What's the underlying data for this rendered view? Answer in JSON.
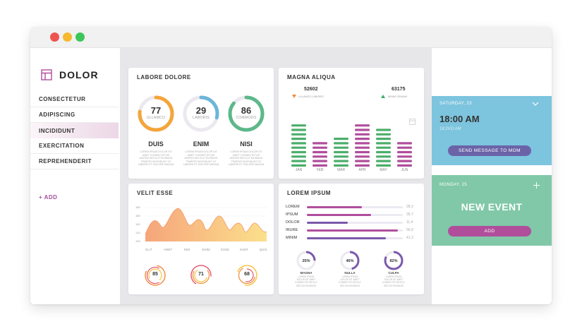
{
  "window": {
    "dots": [
      "#ef5350",
      "#f5b82e",
      "#3cc65a"
    ]
  },
  "sidebar": {
    "brand": "DOLOR",
    "items": [
      {
        "label": "CONSECTETUR",
        "active": false
      },
      {
        "label": "ADIPISCING",
        "active": false
      },
      {
        "label": "INCIDIDUNT",
        "active": true
      },
      {
        "label": "EXERCITATION",
        "active": false
      },
      {
        "label": "REPREHENDERIT",
        "active": false
      }
    ],
    "add_label": "+ ADD"
  },
  "card_labore": {
    "title": "LABORE DOLORE",
    "rings": [
      {
        "value": "77",
        "sub": "ULLAMCO",
        "label": "DUIS",
        "color": "#f4a53b",
        "fraction": 0.77,
        "desc": "LOREM IPSUM DOLOR SIT AMET CONSECTETUR ADIPISCING ELIT EIUSMOD TEMPOR INCIDIDUNT UT LABORE ET DOLORE MAGNA"
      },
      {
        "value": "29",
        "sub": "LABORIS",
        "label": "ENIM",
        "color": "#6cb6d9",
        "fraction": 0.29,
        "desc": "LOREM IPSUM DOLOR SIT AMET CONSECTETUR ADIPISCING ELIT EIUSMOD TEMPOR INCIDIDUNT UT LABORE ET DOLORE MAGNA"
      },
      {
        "value": "86",
        "sub": "COMMODO",
        "label": "NISI",
        "color": "#5cb88a",
        "fraction": 0.86,
        "desc": "LOREM IPSUM DOLOR SIT AMET CONSECTETUR ADIPISCING ELIT EIUSMOD TEMPOR INCIDIDUNT UT LABORE ET DOLORE MAGNA"
      }
    ]
  },
  "card_magna": {
    "title": "MAGNA ALIQUA",
    "stat_left": {
      "value": "52602",
      "label": "ULLAMCO LABORIS",
      "color": "#f08a3c"
    },
    "stat_right": {
      "value": "63175",
      "label": "MINIM VENIAM",
      "color": "#3cae68"
    },
    "months": [
      "JAN",
      "FEB",
      "MAR",
      "APR",
      "MAY",
      "JUN"
    ]
  },
  "chart_data": {
    "type": "bar",
    "categories": [
      "JAN",
      "FEB",
      "MAR",
      "APR",
      "MAY",
      "JUN"
    ],
    "values": [
      10,
      6,
      7,
      10,
      9,
      6
    ],
    "colors": [
      "#4cae6b",
      "#b04e9c",
      "#4cae6b",
      "#b04e9c",
      "#4cae6b",
      "#b04e9c"
    ],
    "title": "",
    "xlabel": "",
    "ylabel": ""
  },
  "card_velit": {
    "title": "VELIT ESSE",
    "y_ticks": [
      "180",
      "160",
      "140",
      "120",
      "100"
    ],
    "x_ticks": [
      "ELIT",
      "AMET",
      "NISI",
      "ENIM",
      "ESSE",
      "SUNT",
      "QUIS"
    ],
    "rings": [
      {
        "value": "85",
        "color": "#f08a3c"
      },
      {
        "value": "71",
        "color": "#e5536b"
      },
      {
        "value": "68",
        "color": "#f4c23c"
      }
    ]
  },
  "card_lorem": {
    "title": "LOREM IPSUM",
    "bars": [
      {
        "label": "LOREM",
        "value": "28,3",
        "fraction": 0.57,
        "color": "#b04e9c"
      },
      {
        "label": "IPSUM",
        "value": "35,7",
        "fraction": 0.67,
        "color": "#b04e9c"
      },
      {
        "label": "DOLOR",
        "value": "11,4",
        "fraction": 0.43,
        "color": "#7b5aab"
      },
      {
        "label": "IRURE",
        "value": "56,9",
        "fraction": 0.95,
        "color": "#b04e9c"
      },
      {
        "label": "MINIM",
        "value": "41,3",
        "fraction": 0.82,
        "color": "#7b5aab"
      }
    ],
    "minis": [
      {
        "pct": "25%",
        "fraction": 0.25,
        "label": "MAGNA",
        "color": "#7b5aab",
        "desc": "LOREM IPSUM DOLOR SIT AMET CONSECTETUR ELIT SED DO EIUSMOD"
      },
      {
        "pct": "46%",
        "fraction": 0.46,
        "label": "NULLA",
        "color": "#7b5aab",
        "desc": "LOREM IPSUM DOLOR SIT AMET CONSECTETUR ELIT SED DO EIUSMOD"
      },
      {
        "pct": "82%",
        "fraction": 0.82,
        "label": "CULPA",
        "color": "#7b5aab",
        "desc": "LOREM IPSUM DOLOR SIT AMET CONSECTETUR ELIT SED DO EIUSMOD"
      }
    ]
  },
  "events": {
    "first": {
      "date": "SATURDAY, 23",
      "time": "18:00 AM",
      "sub": "18:2VO AM",
      "button": "SEND MESSAGE TO MOM",
      "bg": "#7dc4de",
      "button_color": "#6b63a8"
    },
    "second": {
      "date": "MONDAY, 25",
      "title": "NEW EVENT",
      "button": "ADD",
      "bg": "#80c8a8",
      "button_color": "#b04e9c"
    }
  }
}
